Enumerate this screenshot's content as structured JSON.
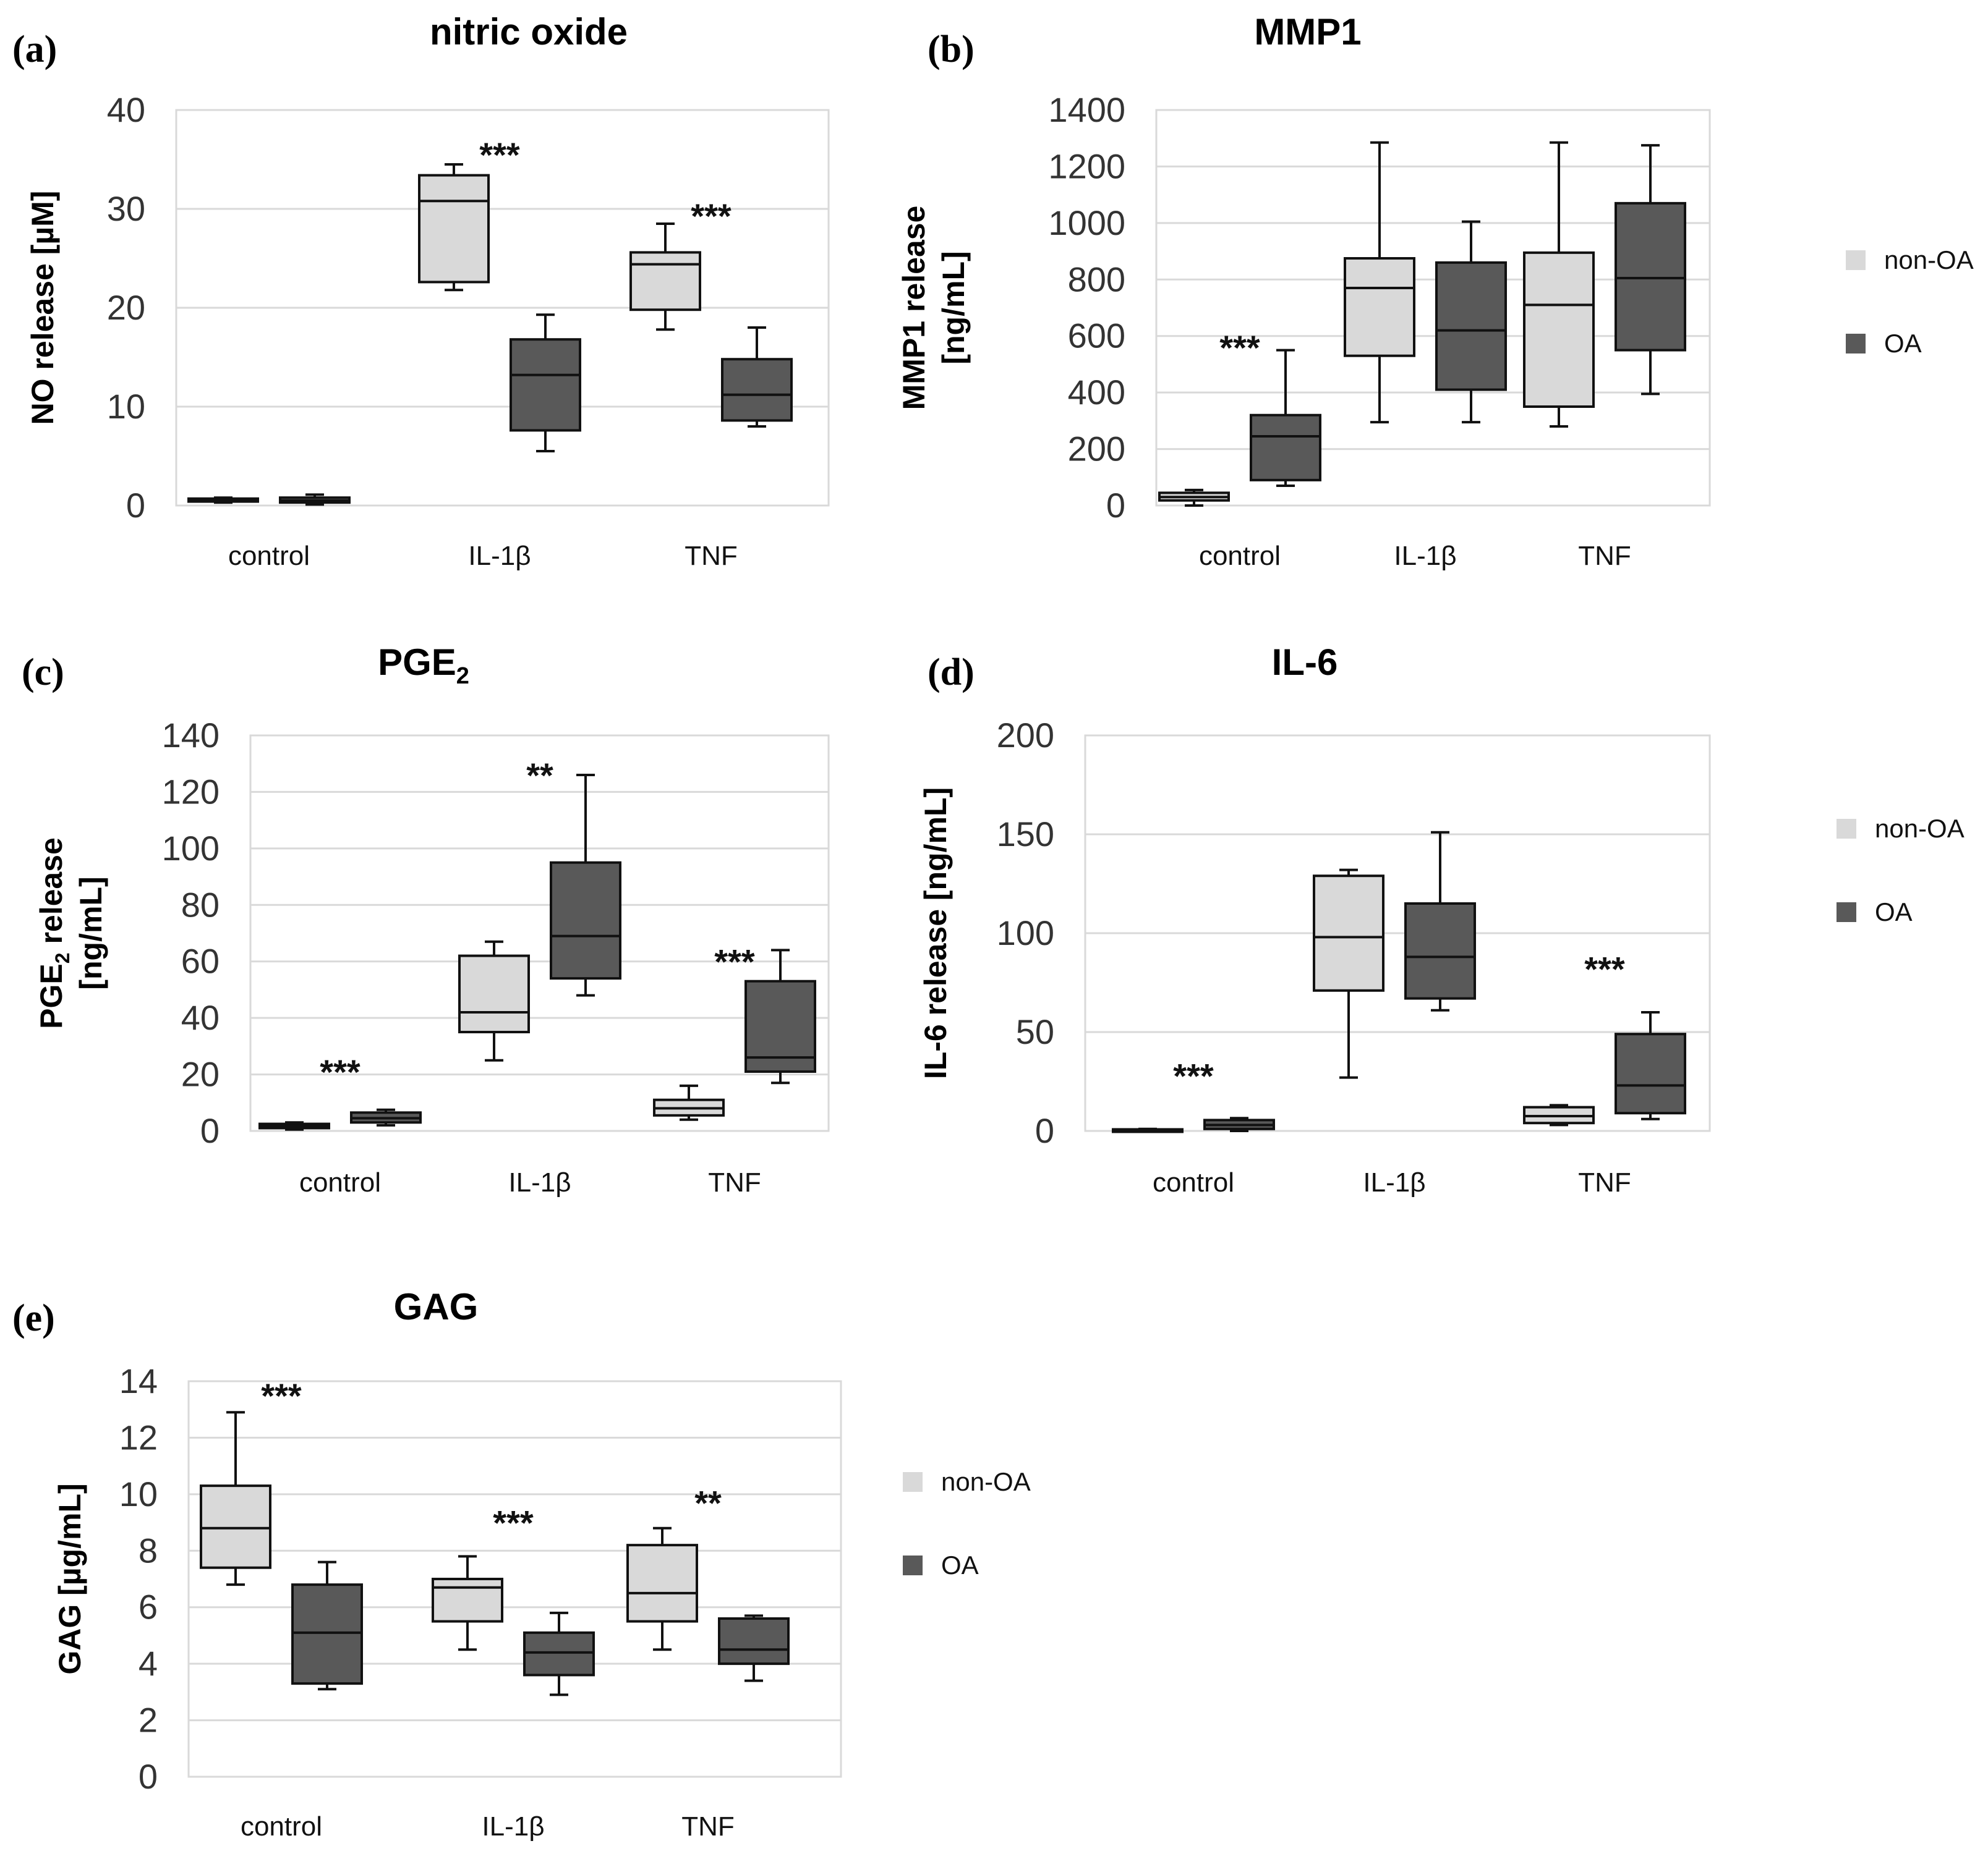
{
  "legend": {
    "non_oa": "non-OA",
    "oa": "OA"
  },
  "colors": {
    "non_oa": "#d9d9d9",
    "oa": "#595959",
    "grid": "#d9d9d9",
    "stroke": "#111111"
  },
  "chart_data": [
    {
      "type": "box",
      "panel": "(a)",
      "title": "nitric oxide",
      "ylabel_lines": [
        "NO release [µM]"
      ],
      "ylim": [
        0,
        40
      ],
      "yticks": [
        0,
        10,
        20,
        30,
        40
      ],
      "categories": [
        "control",
        "IL-1β",
        "TNF"
      ],
      "series": [
        {
          "name": "non-OA",
          "boxes": [
            {
              "min": 0.3,
              "q1": 0.4,
              "median": 0.6,
              "q3": 0.7,
              "max": 0.8
            },
            {
              "min": 21.8,
              "q1": 22.6,
              "median": 30.8,
              "q3": 33.4,
              "max": 34.5
            },
            {
              "min": 17.8,
              "q1": 19.8,
              "median": 24.4,
              "q3": 25.6,
              "max": 28.5
            }
          ]
        },
        {
          "name": "OA",
          "boxes": [
            {
              "min": 0.1,
              "q1": 0.3,
              "median": 0.5,
              "q3": 0.8,
              "max": 1.1
            },
            {
              "min": 5.5,
              "q1": 7.6,
              "median": 13.2,
              "q3": 16.8,
              "max": 19.3
            },
            {
              "min": 8.0,
              "q1": 8.6,
              "median": 11.2,
              "q3": 14.8,
              "max": 18.0
            }
          ]
        }
      ],
      "significance": [
        {
          "category": "IL-1β",
          "label": "***",
          "y": 35.5
        },
        {
          "category": "TNF",
          "label": "***",
          "y": 29.3
        }
      ]
    },
    {
      "type": "box",
      "panel": "(b)",
      "title": "MMP1",
      "ylabel_lines": [
        "MMP1 release",
        "[ng/mL]"
      ],
      "ylim": [
        0,
        1400
      ],
      "yticks": [
        0,
        200,
        400,
        600,
        800,
        1000,
        1200,
        1400
      ],
      "categories": [
        "control",
        "IL-1β",
        "TNF"
      ],
      "series": [
        {
          "name": "non-OA",
          "boxes": [
            {
              "min": 0,
              "q1": 18,
              "median": 30,
              "q3": 45,
              "max": 55
            },
            {
              "min": 295,
              "q1": 530,
              "median": 770,
              "q3": 875,
              "max": 1285
            },
            {
              "min": 280,
              "q1": 350,
              "median": 710,
              "q3": 895,
              "max": 1285
            }
          ]
        },
        {
          "name": "OA",
          "boxes": [
            {
              "min": 70,
              "q1": 90,
              "median": 245,
              "q3": 320,
              "max": 550
            },
            {
              "min": 295,
              "q1": 410,
              "median": 620,
              "q3": 860,
              "max": 1005
            },
            {
              "min": 395,
              "q1": 550,
              "median": 805,
              "q3": 1070,
              "max": 1275
            }
          ]
        }
      ],
      "significance": [
        {
          "category": "control",
          "label": "***",
          "y": 560
        }
      ]
    },
    {
      "type": "box",
      "panel": "(c)",
      "title": "PGE2",
      "title_parts": {
        "main": "PGE",
        "sub": "2"
      },
      "ylabel_lines": [
        "PGE2 release",
        "[ng/mL]"
      ],
      "ylabel_parts": {
        "line1_main": "PGE",
        "line1_sub": "2",
        "line1_rest": " release",
        "line2": "[ng/mL]"
      },
      "ylim": [
        0,
        140
      ],
      "yticks": [
        0,
        20,
        40,
        60,
        80,
        100,
        120,
        140
      ],
      "categories": [
        "control",
        "IL-1β",
        "TNF"
      ],
      "series": [
        {
          "name": "non-OA",
          "boxes": [
            {
              "min": 0.5,
              "q1": 1.0,
              "median": 1.8,
              "q3": 2.5,
              "max": 3.0
            },
            {
              "min": 25,
              "q1": 35,
              "median": 42,
              "q3": 62,
              "max": 67
            },
            {
              "min": 4,
              "q1": 5.5,
              "median": 8,
              "q3": 11,
              "max": 16
            }
          ]
        },
        {
          "name": "OA",
          "boxes": [
            {
              "min": 2,
              "q1": 3,
              "median": 4.5,
              "q3": 6.5,
              "max": 7.5
            },
            {
              "min": 48,
              "q1": 54,
              "median": 69,
              "q3": 95,
              "max": 126
            },
            {
              "min": 17,
              "q1": 21,
              "median": 26,
              "q3": 53,
              "max": 64
            }
          ]
        }
      ],
      "significance": [
        {
          "category": "control",
          "label": "***",
          "y": 21
        },
        {
          "category": "IL-1β",
          "label": "**",
          "y": 126
        },
        {
          "category": "TNF",
          "label": "***",
          "y": 60
        }
      ]
    },
    {
      "type": "box",
      "panel": "(d)",
      "title": "IL-6",
      "ylabel_lines": [
        "IL-6 release [ng/mL]"
      ],
      "ylim": [
        0,
        200
      ],
      "yticks": [
        0,
        50,
        100,
        150,
        200
      ],
      "categories": [
        "control",
        "IL-1β",
        "TNF"
      ],
      "series": [
        {
          "name": "non-OA",
          "boxes": [
            {
              "min": 0,
              "q1": 0.2,
              "median": 0.5,
              "q3": 0.8,
              "max": 1.0
            },
            {
              "min": 27,
              "q1": 71,
              "median": 98,
              "q3": 129,
              "max": 132
            },
            {
              "min": 3,
              "q1": 4,
              "median": 7.5,
              "q3": 12,
              "max": 13
            }
          ]
        },
        {
          "name": "OA",
          "boxes": [
            {
              "min": 0,
              "q1": 1,
              "median": 3,
              "q3": 5.5,
              "max": 6.5
            },
            {
              "min": 61,
              "q1": 67,
              "median": 88,
              "q3": 115,
              "max": 151
            },
            {
              "min": 6,
              "q1": 9,
              "median": 23,
              "q3": 49,
              "max": 60
            }
          ]
        }
      ],
      "significance": [
        {
          "category": "control",
          "label": "***",
          "y": 28
        },
        {
          "category": "TNF",
          "label": "***",
          "y": 82
        }
      ]
    },
    {
      "type": "box",
      "panel": "(e)",
      "title": "GAG",
      "ylabel_lines": [
        "GAG [µg/mL]"
      ],
      "ylim": [
        0,
        14
      ],
      "yticks": [
        0,
        2,
        4,
        6,
        8,
        10,
        12,
        14
      ],
      "categories": [
        "control",
        "IL-1β",
        "TNF"
      ],
      "series": [
        {
          "name": "non-OA",
          "boxes": [
            {
              "min": 6.8,
              "q1": 7.4,
              "median": 8.8,
              "q3": 10.3,
              "max": 12.9
            },
            {
              "min": 4.5,
              "q1": 5.5,
              "median": 6.7,
              "q3": 7.0,
              "max": 7.8
            },
            {
              "min": 4.5,
              "q1": 5.5,
              "median": 6.5,
              "q3": 8.2,
              "max": 8.8
            }
          ]
        },
        {
          "name": "OA",
          "boxes": [
            {
              "min": 3.1,
              "q1": 3.3,
              "median": 5.1,
              "q3": 6.8,
              "max": 7.6
            },
            {
              "min": 2.9,
              "q1": 3.6,
              "median": 4.4,
              "q3": 5.1,
              "max": 5.8
            },
            {
              "min": 3.4,
              "q1": 4.0,
              "median": 4.5,
              "q3": 5.6,
              "max": 5.7
            }
          ]
        }
      ],
      "significance": [
        {
          "category": "control",
          "label": "***",
          "y": 13.5
        },
        {
          "category": "IL-1β",
          "label": "***",
          "y": 9.0
        },
        {
          "category": "TNF",
          "label": "**",
          "y": 9.7
        }
      ]
    }
  ]
}
